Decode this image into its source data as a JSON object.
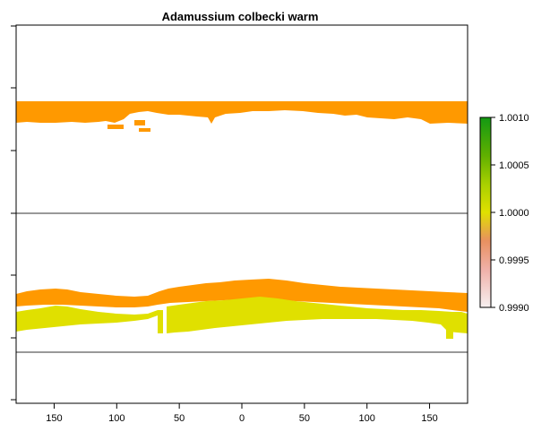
{
  "title": "Adamussium colbecki warm",
  "colors": {
    "orange": "#FF9900",
    "yellow": "#E0E000",
    "axis": "#000000",
    "line": "#333333"
  },
  "x_ticks": [
    {
      "label": "150",
      "value": -150
    },
    {
      "label": "100",
      "value": -100
    },
    {
      "label": "50",
      "value": -50
    },
    {
      "label": "0",
      "value": 0
    },
    {
      "label": "50",
      "value": 50
    },
    {
      "label": "100",
      "value": 100
    },
    {
      "label": "150",
      "value": 150
    }
  ],
  "legend": {
    "ticks": [
      {
        "label": "1.0010",
        "value": 1.001
      },
      {
        "label": "1.0005",
        "value": 1.0005
      },
      {
        "label": "1.0000",
        "value": 1.0
      },
      {
        "label": "0.9995",
        "value": 0.9995
      },
      {
        "label": "0.9990",
        "value": 0.999
      }
    ],
    "min": 0.999,
    "max": 1.001
  }
}
